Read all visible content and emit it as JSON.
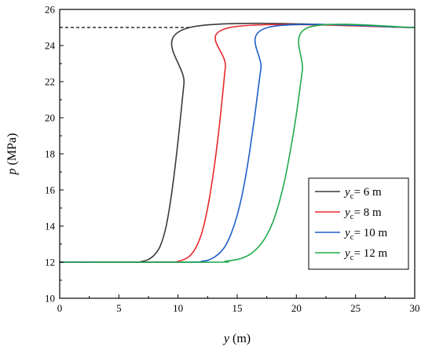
{
  "chart_data": {
    "type": "line",
    "xlabel": {
      "var": "y",
      "unit": " (m)"
    },
    "ylabel": {
      "var": "p",
      "unit": " (MPa)"
    },
    "xlim": [
      0,
      30
    ],
    "ylim": [
      10,
      26
    ],
    "xticks": [
      0,
      5,
      10,
      15,
      20,
      25,
      30
    ],
    "yticks": [
      10,
      12,
      14,
      16,
      18,
      20,
      22,
      24,
      26
    ],
    "grid": false,
    "legend_position": "lower-right",
    "reference_line": {
      "y": 25,
      "x": [
        0,
        11
      ],
      "style": "dashed",
      "color": "#000000"
    },
    "series": [
      {
        "name_var": "y",
        "name_sub": "c",
        "name_rest": "= 6 m",
        "color": "#3a3a3a",
        "x": [
          0,
          6,
          7,
          7.5,
          8,
          8.5,
          9,
          9.5,
          10,
          10.5,
          11,
          30
        ],
        "y": [
          12,
          12,
          12.05,
          12.15,
          12.4,
          12.9,
          14.0,
          16.0,
          18.7,
          21.9,
          25,
          25
        ]
      },
      {
        "name_var": "y",
        "name_sub": "c",
        "name_rest": "= 8 m",
        "color": "#e8262a",
        "x": [
          0,
          9,
          10,
          10.5,
          11,
          11.5,
          12,
          12.5,
          13,
          13.5,
          14,
          14.4,
          30
        ],
        "y": [
          12,
          12,
          12.05,
          12.15,
          12.35,
          12.8,
          13.6,
          15.0,
          17.0,
          19.6,
          22.8,
          25,
          25
        ]
      },
      {
        "name_var": "y",
        "name_sub": "c",
        "name_rest": "= 10 m",
        "color": "#1f5fc8",
        "x": [
          0,
          11,
          12,
          12.5,
          13,
          13.5,
          14,
          14.5,
          15,
          15.5,
          16,
          16.5,
          17,
          17.6,
          30
        ],
        "y": [
          12,
          12,
          12.05,
          12.1,
          12.25,
          12.5,
          12.9,
          13.6,
          14.6,
          16.0,
          17.9,
          20.2,
          22.7,
          25,
          25
        ]
      },
      {
        "name_var": "y",
        "name_sub": "c",
        "name_rest": "= 12 m",
        "color": "#1faa4a",
        "x": [
          0,
          13,
          14,
          15,
          15.5,
          16,
          16.5,
          17,
          17.5,
          18,
          18.5,
          19,
          19.5,
          20,
          20.5,
          21,
          30
        ],
        "y": [
          12,
          12,
          12.05,
          12.15,
          12.25,
          12.4,
          12.65,
          13.0,
          13.5,
          14.2,
          15.2,
          16.5,
          18.2,
          20.2,
          22.6,
          25,
          25
        ]
      }
    ]
  }
}
